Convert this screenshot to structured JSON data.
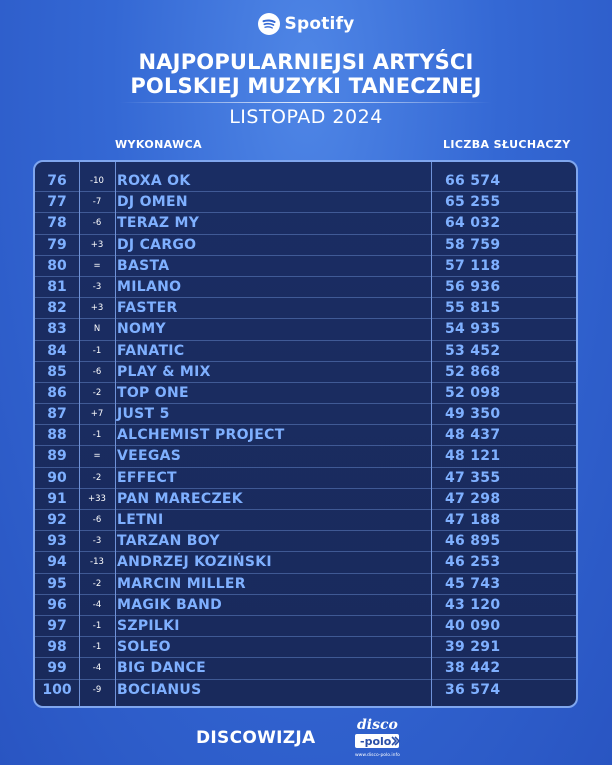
{
  "brand": "Spotify",
  "header": {
    "title_line1": "NAJPOPULARNIEJSI ARTYŚCI",
    "title_line2": "POLSKIEJ MUZYKI TANECZNEJ",
    "subtitle": "LISTOPAD 2024"
  },
  "columns": {
    "artist": "WYKONAWCA",
    "listeners": "LICZBA SŁUCHACZY"
  },
  "rows": [
    {
      "rank": "76",
      "change": "-10",
      "artist": "ROXA OK",
      "listeners": "66 574"
    },
    {
      "rank": "77",
      "change": "-7",
      "artist": "DJ OMEN",
      "listeners": "65 255"
    },
    {
      "rank": "78",
      "change": "-6",
      "artist": "TERAZ MY",
      "listeners": "64 032"
    },
    {
      "rank": "79",
      "change": "+3",
      "artist": "DJ CARGO",
      "listeners": "58 759"
    },
    {
      "rank": "80",
      "change": "=",
      "artist": "BASTA",
      "listeners": "57 118"
    },
    {
      "rank": "81",
      "change": "-3",
      "artist": "MILANO",
      "listeners": "56 936"
    },
    {
      "rank": "82",
      "change": "+3",
      "artist": "FASTER",
      "listeners": "55 815"
    },
    {
      "rank": "83",
      "change": "N",
      "artist": "NOMY",
      "listeners": "54 935"
    },
    {
      "rank": "84",
      "change": "-1",
      "artist": "FANATIC",
      "listeners": "53 452"
    },
    {
      "rank": "85",
      "change": "-6",
      "artist": "PLAY & MIX",
      "listeners": "52 868"
    },
    {
      "rank": "86",
      "change": "-2",
      "artist": "TOP ONE",
      "listeners": "52 098"
    },
    {
      "rank": "87",
      "change": "+7",
      "artist": "JUST 5",
      "listeners": "49 350"
    },
    {
      "rank": "88",
      "change": "-1",
      "artist": "ALCHEMIST PROJECT",
      "listeners": "48 437"
    },
    {
      "rank": "89",
      "change": "=",
      "artist": "VEEGAS",
      "listeners": "48 121"
    },
    {
      "rank": "90",
      "change": "-2",
      "artist": "EFFECT",
      "listeners": "47 355"
    },
    {
      "rank": "91",
      "change": "+33",
      "artist": "PAN MARECZEK",
      "listeners": "47 298"
    },
    {
      "rank": "92",
      "change": "-6",
      "artist": "LETNI",
      "listeners": "47 188"
    },
    {
      "rank": "93",
      "change": "-3",
      "artist": "TARZAN BOY",
      "listeners": "46 895"
    },
    {
      "rank": "94",
      "change": "-13",
      "artist": "ANDRZEJ KOZIŃSKI",
      "listeners": "46 253"
    },
    {
      "rank": "95",
      "change": "-2",
      "artist": "MARCIN MILLER",
      "listeners": "45 743"
    },
    {
      "rank": "96",
      "change": "-4",
      "artist": "MAGIK BAND",
      "listeners": "43 120"
    },
    {
      "rank": "97",
      "change": "-1",
      "artist": "SZPILKI",
      "listeners": "40 090"
    },
    {
      "rank": "98",
      "change": "-1",
      "artist": "SOLEO",
      "listeners": "39 291"
    },
    {
      "rank": "99",
      "change": "-4",
      "artist": "BIG DANCE",
      "listeners": "38 442"
    },
    {
      "rank": "100",
      "change": "-9",
      "artist": "BOCIANUS",
      "listeners": "36 574"
    }
  ],
  "footer": {
    "brand": "DISCOWIZJA",
    "logo_word1": "disco",
    "logo_word2": "polo",
    "logo_url": "www.disco-polo.info"
  },
  "colors": {
    "accent_text": "#7fb0ff",
    "table_bg": "#1a2d63",
    "border": "#7fa6ef"
  }
}
